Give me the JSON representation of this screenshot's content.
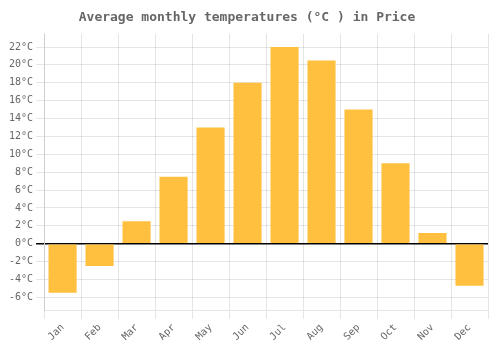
{
  "chart_data": {
    "type": "bar",
    "title": "Average monthly temperatures (°C ) in Price",
    "categories": [
      "Jan",
      "Feb",
      "Mar",
      "Apr",
      "May",
      "Jun",
      "Jul",
      "Aug",
      "Sep",
      "Oct",
      "Nov",
      "Dec"
    ],
    "values": [
      -5.5,
      -2.5,
      2.5,
      7.5,
      13.0,
      18.0,
      22.0,
      20.5,
      15.0,
      9.0,
      1.2,
      -4.7
    ],
    "color": "#FFC040",
    "ylim": [
      -7.5,
      23.5
    ],
    "yticks": [
      {
        "value": -6,
        "label": "-6°C"
      },
      {
        "value": -4,
        "label": "-4°C"
      },
      {
        "value": -2,
        "label": "-2°C"
      },
      {
        "value": 0,
        "label": "0°C"
      },
      {
        "value": 2,
        "label": "2°C"
      },
      {
        "value": 4,
        "label": "4°C"
      },
      {
        "value": 6,
        "label": "6°C"
      },
      {
        "value": 8,
        "label": "8°C"
      },
      {
        "value": 10,
        "label": "10°C"
      },
      {
        "value": 12,
        "label": "12°C"
      },
      {
        "value": 14,
        "label": "14°C"
      },
      {
        "value": 16,
        "label": "16°C"
      },
      {
        "value": 18,
        "label": "18°C"
      },
      {
        "value": 20,
        "label": "20°C"
      },
      {
        "value": 22,
        "label": "22°C"
      }
    ],
    "grid": true
  }
}
